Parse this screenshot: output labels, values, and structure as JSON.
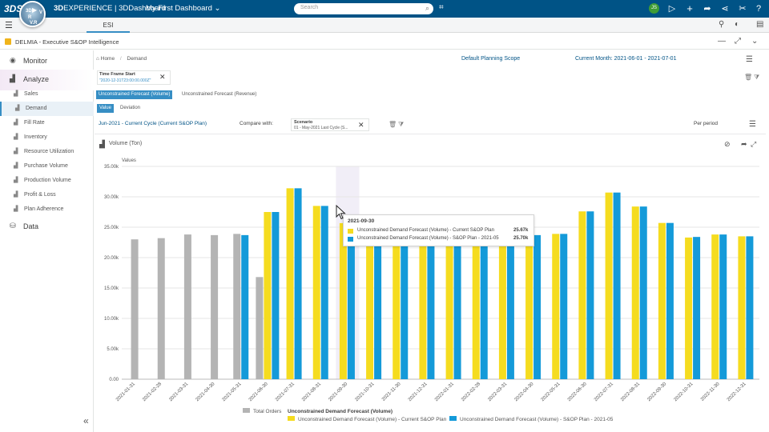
{
  "topbar": {
    "ds_logo": "3DS",
    "compass_top": "3D",
    "compass_v": "V",
    "compass_r": "R",
    "compass_bottom": "V.R",
    "brand_bold": "3D",
    "brand_rest": "EXPERIENCE | 3DDashboard",
    "dashboard_name": "My First Dashboard",
    "search_placeholder": "Search",
    "avatar_initials": "JS"
  },
  "tabbar": {
    "active_tab": "ESI"
  },
  "widget": {
    "title": "DELMIA - Executive S&OP Intelligence"
  },
  "sidebar": {
    "sections": [
      {
        "label": "Monitor"
      },
      {
        "label": "Analyze"
      },
      {
        "label": "Data"
      }
    ],
    "items": [
      {
        "label": "Sales"
      },
      {
        "label": "Demand"
      },
      {
        "label": "Fill Rate"
      },
      {
        "label": "Inventory"
      },
      {
        "label": "Resource Utilization"
      },
      {
        "label": "Purchase Volume"
      },
      {
        "label": "Production Volume"
      },
      {
        "label": "Profit & Loss"
      },
      {
        "label": "Plan Adherence"
      }
    ]
  },
  "breadcrumb": {
    "home": "Home",
    "current": "Demand"
  },
  "header": {
    "scope": "Default Planning Scope",
    "month": "Current Month: 2021-06-01 - 2021-07-01"
  },
  "timeframe": {
    "title": "Time Frame Start",
    "value": "\"2020-12-31T23:00:00.000Z\""
  },
  "measure_tabs": [
    "Unconstrained Forecast (Volume)",
    "Unconstrained Forecast (Revenue)"
  ],
  "view_tabs": [
    "Value",
    "Deviation"
  ],
  "cycle": "Jun-2021 - Current Cycle (Current S&OP Plan)",
  "compare": {
    "label": "Compare with:",
    "scenario_title": "Scenario",
    "scenario_value": "01 - May-2021 Last Cycle (S..."
  },
  "per_period": "Per period",
  "chart_title": "Volume (Ton)",
  "tooltip": {
    "title": "2021-09-30",
    "rows": [
      {
        "label": "Unconstrained Demand Forecast (Volume) - Current S&OP Plan",
        "value": "25.67k",
        "color": "#f5dc1f"
      },
      {
        "label": "Unconstrained Demand Forecast (Volume) - S&OP Plan - 2021-05",
        "value": "25.70k",
        "color": "#149ad9"
      }
    ]
  },
  "chart_data": {
    "type": "bar",
    "ylabel": "Values",
    "ylim": [
      0,
      35000
    ],
    "yticks": [
      "0.00",
      "5.00k",
      "10.00k",
      "15.00k",
      "20.00k",
      "25.00k",
      "30.00k",
      "35.00k"
    ],
    "categories": [
      "2021-01-31",
      "2021-02-28",
      "2021-03-31",
      "2021-04-30",
      "2021-05-31",
      "2021-06-30",
      "2021-07-31",
      "2021-08-31",
      "2021-09-30",
      "2021-10-31",
      "2021-11-30",
      "2021-12-31",
      "2022-01-31",
      "2022-02-28",
      "2022-03-31",
      "2022-04-30",
      "2022-05-31",
      "2022-06-30",
      "2022-07-31",
      "2022-08-31",
      "2022-09-30",
      "2022-10-31",
      "2022-11-30",
      "2022-12-31"
    ],
    "series": [
      {
        "name": "Total Orders",
        "color": "#b4b4b4",
        "values": [
          23000,
          23200,
          23800,
          23700,
          23900,
          16800,
          null,
          null,
          null,
          null,
          null,
          null,
          null,
          null,
          null,
          null,
          null,
          null,
          null,
          null,
          null,
          null,
          null,
          null
        ]
      },
      {
        "name": "Unconstrained Demand Forecast (Volume) - Current S&OP Plan",
        "color": "#f5dc1f",
        "values": [
          null,
          null,
          null,
          null,
          null,
          27500,
          31400,
          28500,
          25670,
          25500,
          24100,
          23500,
          23700,
          23900,
          23600,
          23700,
          23900,
          27600,
          30700,
          28400,
          25700,
          23300,
          23800,
          23500
        ]
      },
      {
        "name": "Unconstrained Demand Forecast (Volume) - S&OP Plan - 2021-05",
        "color": "#149ad9",
        "values": [
          null,
          null,
          null,
          null,
          23700,
          27500,
          31400,
          28500,
          25700,
          25500,
          24100,
          23500,
          23700,
          23900,
          23600,
          23700,
          23900,
          27600,
          30700,
          28400,
          25700,
          23400,
          23800,
          23500
        ]
      }
    ],
    "legend_group_title": "Unconstrained Demand Forecast (Volume)",
    "legend": "bottom",
    "highlight_category": "2021-09-30"
  }
}
